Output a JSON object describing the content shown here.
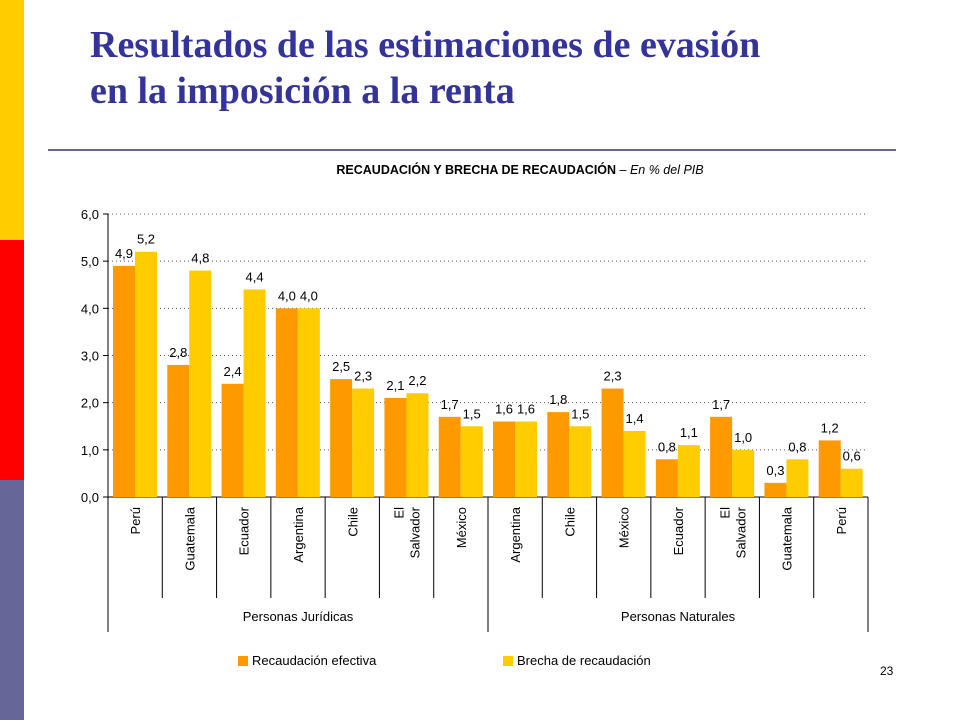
{
  "slide": {
    "title_line1": "Resultados de las estimaciones de evasión",
    "title_line2": "en la imposición a la renta",
    "page_number": "23"
  },
  "colors": {
    "sidebar_yellow": "#ffcc00",
    "sidebar_red": "#ff0000",
    "sidebar_blue": "#666699",
    "title": "#333399",
    "series_recaudacion": "#ff9900",
    "series_brecha": "#ffcc00"
  },
  "chart_data": {
    "type": "bar",
    "title": "RECAUDACIÓN Y BRECHA DE RECAUDACIÓN",
    "subtitle": "– En % del PIB",
    "ylim": [
      0,
      6
    ],
    "yticks": [
      "0,0",
      "1,0",
      "2,0",
      "3,0",
      "4,0",
      "5,0",
      "6,0"
    ],
    "grid": true,
    "legend_position": "bottom",
    "groups": [
      {
        "name": "Personas Jurídicas",
        "categories": [
          "Perú",
          "Guatemala",
          "Ecuador",
          "Argentina",
          "Chile",
          "El Salvador",
          "México"
        ]
      },
      {
        "name": "Personas Naturales",
        "categories": [
          "Argentina",
          "Chile",
          "México",
          "Ecuador",
          "El Salvador",
          "Guatemala",
          "Perú"
        ]
      }
    ],
    "categories": [
      "Perú",
      "Guatemala",
      "Ecuador",
      "Argentina",
      "Chile",
      "El Salvador",
      "México",
      "Argentina",
      "Chile",
      "México",
      "Ecuador",
      "El Salvador",
      "Guatemala",
      "Perú"
    ],
    "series": [
      {
        "name": "Recaudación efectiva",
        "values": [
          4.9,
          2.8,
          2.4,
          4.0,
          2.5,
          2.1,
          1.7,
          1.6,
          1.8,
          2.3,
          0.8,
          1.7,
          0.3,
          1.2
        ],
        "labels": [
          "4,9",
          "2,8",
          "2,4",
          "4,0",
          "2,5",
          "2,1",
          "1,7",
          "1,6",
          "1,8",
          "2,3",
          "0,8",
          "1,7",
          "0,3",
          "1,2"
        ]
      },
      {
        "name": "Brecha de recaudación",
        "values": [
          5.2,
          4.8,
          4.4,
          4.0,
          2.3,
          2.2,
          1.5,
          1.6,
          1.5,
          1.4,
          1.1,
          1.0,
          0.8,
          0.6
        ],
        "labels": [
          "5,2",
          "4,8",
          "4,4",
          "4,0",
          "2,3",
          "2,2",
          "1,5",
          "1,6",
          "1,5",
          "1,4",
          "1,1",
          "1,0",
          "0,8",
          "0,6"
        ]
      }
    ]
  }
}
